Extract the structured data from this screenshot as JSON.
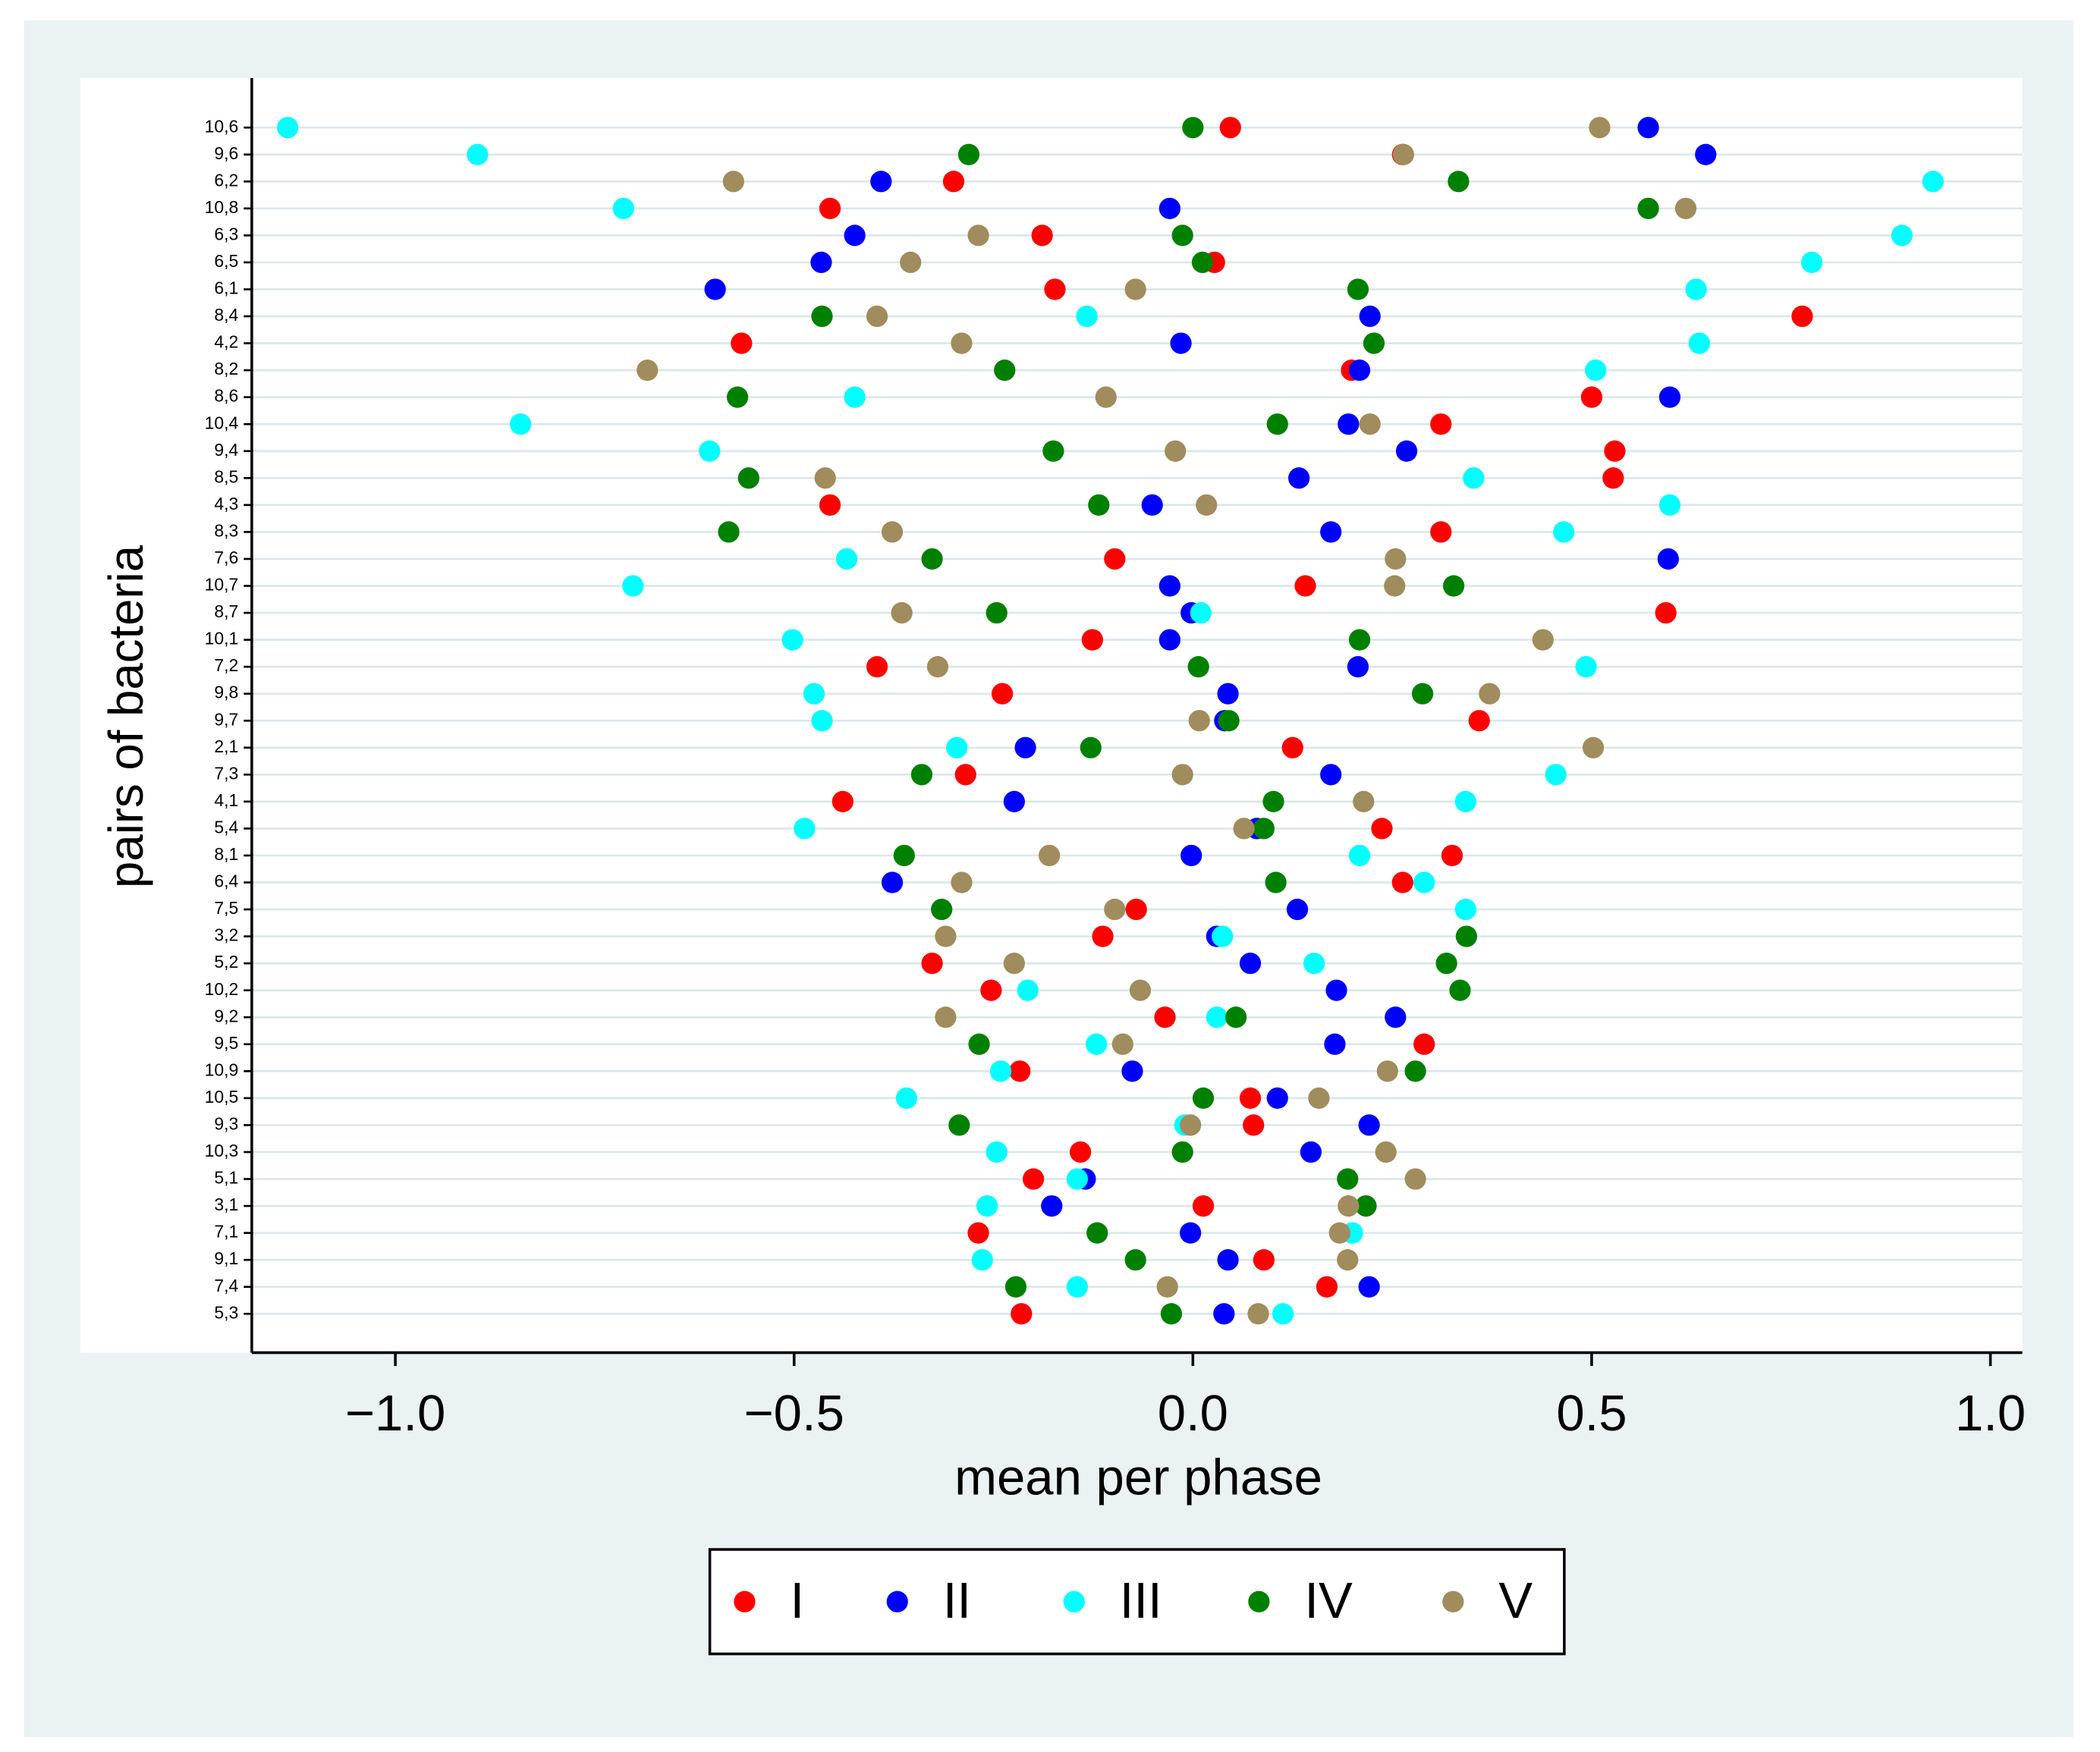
{
  "chart_data": {
    "type": "dot",
    "x_label": "mean per phase",
    "y_label": "pairs of bacteria",
    "categories": [
      "10,6",
      "9,6",
      "6,2",
      "10,8",
      "6,3",
      "6,5",
      "6,1",
      "8,4",
      "4,2",
      "8,2",
      "8,6",
      "10,4",
      "9,4",
      "8,5",
      "4,3",
      "8,3",
      "7,6",
      "10,7",
      "8,7",
      "10,1",
      "7,2",
      "9,8",
      "9,7",
      "2,1",
      "7,3",
      "4,1",
      "5,4",
      "8,1",
      "6,4",
      "7,5",
      "3,2",
      "5,2",
      "10,2",
      "9,2",
      "9,5",
      "10,9",
      "10,5",
      "9,3",
      "10,3",
      "5,1",
      "3,1",
      "7,1",
      "9,1",
      "7,4",
      "5,3"
    ],
    "series": [
      {
        "name": "I",
        "color": "#ff0000",
        "values": [
          0.047,
          0.263,
          -0.3,
          -0.455,
          -0.189,
          0.027,
          -0.173,
          0.764,
          -0.566,
          0.199,
          0.5,
          0.311,
          0.529,
          0.527,
          -0.455,
          0.311,
          -0.098,
          0.141,
          0.593,
          -0.126,
          -0.396,
          -0.239,
          0.359,
          0.125,
          -0.285,
          -0.439,
          0.237,
          0.325,
          0.263,
          -0.071,
          -0.113,
          -0.327,
          -0.253,
          -0.035,
          0.29,
          -0.217,
          0.072,
          0.076,
          -0.141,
          -0.2,
          0.013,
          -0.269,
          0.089,
          0.168,
          -0.215
        ]
      },
      {
        "name": "II",
        "color": "#0000ff",
        "values": [
          0.571,
          0.643,
          -0.391,
          -0.029,
          -0.424,
          -0.466,
          -0.599,
          0.222,
          -0.015,
          0.209,
          0.598,
          0.195,
          0.268,
          0.133,
          -0.051,
          0.173,
          0.596,
          -0.029,
          -0.002,
          -0.029,
          0.207,
          0.044,
          0.04,
          -0.21,
          0.173,
          -0.224,
          0.08,
          -0.002,
          -0.377,
          0.131,
          0.03,
          0.072,
          0.18,
          0.254,
          0.178,
          -0.076,
          0.106,
          0.221,
          0.148,
          -0.135,
          -0.177,
          -0.003,
          0.044,
          0.221,
          0.039
        ]
      },
      {
        "name": "III",
        "color": "#00ffff",
        "values": [
          -1.135,
          -0.897,
          0.928,
          -0.714,
          0.889,
          0.776,
          0.631,
          -0.133,
          0.635,
          0.505,
          -0.424,
          -0.843,
          -0.606,
          0.352,
          0.598,
          0.465,
          -0.434,
          -0.702,
          0.01,
          -0.502,
          0.493,
          -0.475,
          -0.465,
          -0.296,
          0.455,
          0.342,
          -0.487,
          0.209,
          0.29,
          0.342,
          0.037,
          0.152,
          -0.207,
          0.03,
          -0.121,
          -0.241,
          -0.359,
          -0.01,
          -0.246,
          -0.145,
          -0.258,
          0.2,
          -0.264,
          -0.145,
          0.113
        ]
      },
      {
        "name": "IV",
        "color": "#008000",
        "values": [
          0.0,
          -0.281,
          0.333,
          0.571,
          -0.013,
          0.012,
          0.207,
          -0.465,
          0.227,
          -0.236,
          -0.571,
          0.106,
          -0.175,
          -0.557,
          -0.118,
          -0.582,
          -0.327,
          0.327,
          -0.246,
          0.209,
          0.007,
          0.288,
          0.045,
          -0.128,
          -0.34,
          0.101,
          0.089,
          -0.362,
          0.104,
          -0.315,
          0.343,
          0.318,
          0.335,
          0.054,
          -0.268,
          0.279,
          0.013,
          -0.293,
          -0.013,
          0.194,
          0.217,
          -0.12,
          -0.072,
          -0.222,
          -0.027
        ]
      },
      {
        "name": "V",
        "color": "#a08c5c",
        "values": [
          0.51,
          0.264,
          -0.576,
          0.618,
          -0.269,
          -0.354,
          -0.072,
          -0.396,
          -0.29,
          -0.684,
          -0.109,
          0.222,
          -0.022,
          -0.461,
          0.017,
          -0.377,
          0.254,
          0.253,
          -0.365,
          0.439,
          -0.32,
          0.372,
          0.008,
          0.502,
          -0.013,
          0.214,
          0.064,
          -0.18,
          -0.29,
          -0.098,
          -0.31,
          -0.224,
          -0.066,
          -0.31,
          -0.088,
          0.244,
          0.158,
          -0.003,
          0.242,
          0.279,
          0.195,
          0.184,
          0.194,
          -0.032,
          0.082
        ]
      }
    ],
    "xlim": [
      -1.18,
      1.04
    ],
    "xticks": [
      {
        "value": -1,
        "label": "−1.0"
      },
      {
        "value": -0.5,
        "label": "−0.5"
      },
      {
        "value": 0,
        "label": "0.0"
      },
      {
        "value": 0.5,
        "label": "0.5"
      },
      {
        "value": 1,
        "label": "1.0"
      }
    ],
    "grid": true,
    "legend": "bottom"
  }
}
